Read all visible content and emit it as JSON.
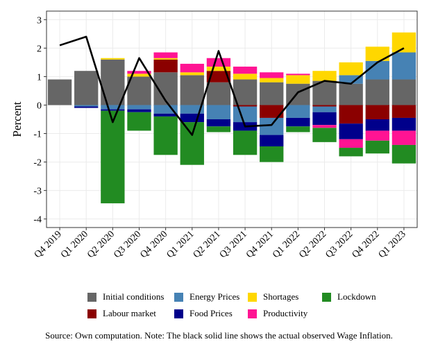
{
  "chart_data": {
    "type": "bar",
    "stacked": true,
    "ylabel": "Percent",
    "ylim": [
      -4.3,
      3.3
    ],
    "yticks": [
      -4,
      -3,
      -2,
      -1,
      0,
      1,
      2,
      3
    ],
    "categories": [
      "Q4 2019",
      "Q1 2020",
      "Q2 2020",
      "Q3 2020",
      "Q4 2020",
      "Q1 2021",
      "Q2 2021",
      "Q3 2021",
      "Q4 2021",
      "Q1 2022",
      "Q2 2022",
      "Q3 2022",
      "Q4 2022",
      "Q1 2023"
    ],
    "grid": true,
    "legend_position": "bottom",
    "series": [
      {
        "name": "Initial conditions",
        "color": "#666666",
        "values": [
          0.9,
          1.2,
          1.6,
          1.0,
          1.15,
          1.05,
          0.8,
          0.9,
          0.8,
          0.75,
          0.85,
          0.75,
          0.9,
          0.9
        ]
      },
      {
        "name": "Labour market",
        "color": "#8b0000",
        "values": [
          0,
          0,
          0,
          0,
          0.45,
          0,
          0.4,
          -0.05,
          -0.45,
          0,
          -0.05,
          -0.65,
          -0.5,
          -0.45
        ]
      },
      {
        "name": "Energy Prices",
        "color": "#4682b4",
        "values": [
          0,
          -0.05,
          -0.15,
          -0.15,
          -0.3,
          -0.3,
          -0.5,
          -0.55,
          -0.6,
          -0.45,
          -0.2,
          0.3,
          0.65,
          0.95
        ]
      },
      {
        "name": "Food Prices",
        "color": "#00008b",
        "values": [
          0,
          -0.05,
          -0.05,
          -0.1,
          -0.1,
          -0.3,
          -0.25,
          -0.3,
          -0.4,
          -0.3,
          -0.45,
          -0.55,
          -0.4,
          -0.45
        ]
      },
      {
        "name": "Shortages",
        "color": "#ffd700",
        "values": [
          0,
          0,
          0.05,
          0.1,
          0.05,
          0.1,
          0.15,
          0.2,
          0.15,
          0.3,
          0.35,
          0.45,
          0.5,
          0.7
        ]
      },
      {
        "name": "Productivity",
        "color": "#ff1493",
        "values": [
          0,
          0,
          0,
          0.1,
          0.2,
          0.3,
          0.3,
          0.25,
          0.2,
          0.05,
          -0.1,
          -0.3,
          -0.35,
          -0.5
        ]
      },
      {
        "name": "Lockdown",
        "color": "#228b22",
        "values": [
          0,
          0,
          -3.25,
          -0.65,
          -1.35,
          -1.5,
          -0.2,
          -0.85,
          -0.55,
          -0.2,
          -0.5,
          -0.3,
          -0.45,
          -0.65
        ]
      }
    ],
    "line": {
      "description": "The black solid line shows the actual observed Wage Inflation.",
      "color": "#000000",
      "values": [
        2.1,
        2.4,
        -0.6,
        1.65,
        0.15,
        -1.05,
        1.9,
        -0.75,
        -0.7,
        0.45,
        0.85,
        0.75,
        1.5,
        2.0
      ]
    }
  },
  "legend": {
    "items": [
      {
        "label": "Initial conditions",
        "color": "#666666"
      },
      {
        "label": "Energy Prices",
        "color": "#4682b4"
      },
      {
        "label": "Shortages",
        "color": "#ffd700"
      },
      {
        "label": "Lockdown",
        "color": "#228b22"
      },
      {
        "label": "Labour market",
        "color": "#8b0000"
      },
      {
        "label": "Food Prices",
        "color": "#00008b"
      },
      {
        "label": "Productivity",
        "color": "#ff1493"
      }
    ]
  },
  "note": "Source: Own computation. Note: The black solid line shows the actual observed Wage Inflation."
}
